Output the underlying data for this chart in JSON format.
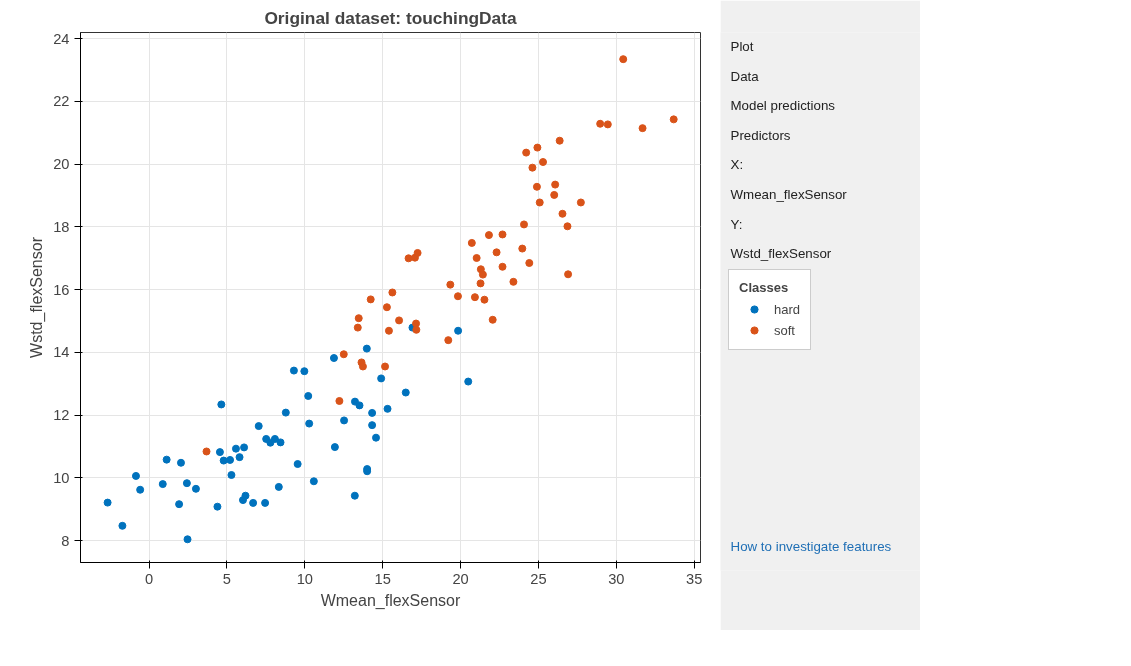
{
  "chart_data": {
    "type": "scatter",
    "title": "Original dataset: touchingData",
    "xlabel": "Wmean_flexSensor",
    "ylabel": "Wstd_flexSensor",
    "xlim": [
      -4.4,
      35.4
    ],
    "ylim": [
      7.3,
      24.2
    ],
    "xticks": [
      0,
      5,
      10,
      15,
      20,
      25,
      30,
      35
    ],
    "yticks": [
      8,
      10,
      12,
      14,
      16,
      18,
      20,
      22,
      24
    ],
    "grid": true,
    "marker": "circle",
    "legend": "right",
    "legend_title": "Classes",
    "annotations": [
      "Plot",
      "Data",
      "Model predictions",
      "Predictors",
      "X:",
      "Wmean_flexSensor",
      "Y:",
      "Wstd_flexSensor",
      "How to investigate features"
    ],
    "series": [
      {
        "name": "hard",
        "color": "#0072bd",
        "x": [
          -2.66,
          -1.71,
          -0.84,
          -0.57,
          0.88,
          1.13,
          1.93,
          2.05,
          2.43,
          2.47,
          3.01,
          4.39,
          4.55,
          4.64,
          4.79,
          5.2,
          5.29,
          5.58,
          5.81,
          6.1,
          6.03,
          6.19,
          6.68,
          7.04,
          7.45,
          7.52,
          7.79,
          8.08,
          8.44,
          8.33,
          8.78,
          9.3,
          9.54,
          9.97,
          10.22,
          10.28,
          10.58,
          11.87,
          11.93,
          12.52,
          13.21,
          13.22,
          13.51,
          13.98,
          14.32,
          14.32,
          14.0,
          14.0,
          14.57,
          14.9,
          15.31,
          16.91,
          19.84,
          20.49,
          16.48
        ],
        "values": [
          9.21,
          8.47,
          10.06,
          9.62,
          9.8,
          10.58,
          9.16,
          10.48,
          9.83,
          8.04,
          9.65,
          9.08,
          10.82,
          12.34,
          10.55,
          10.57,
          10.09,
          10.93,
          10.66,
          10.97,
          9.29,
          9.43,
          9.2,
          11.65,
          9.2,
          11.24,
          11.12,
          11.24,
          11.13,
          9.71,
          12.08,
          13.42,
          10.44,
          13.4,
          12.61,
          11.73,
          9.89,
          13.82,
          10.98,
          11.83,
          9.43,
          12.43,
          12.31,
          14.12,
          12.07,
          11.68,
          10.28,
          10.21,
          11.28,
          13.17,
          12.2,
          14.79,
          14.69,
          13.07,
          12.72
        ]
      },
      {
        "name": "soft",
        "color": "#d95319",
        "x": [
          3.69,
          12.22,
          12.5,
          13.4,
          13.46,
          13.64,
          13.73,
          14.23,
          15.15,
          15.27,
          15.4,
          15.62,
          16.05,
          16.66,
          17.07,
          17.24,
          17.14,
          17.16,
          19.21,
          19.34,
          19.83,
          20.72,
          20.92,
          21.03,
          21.3,
          21.43,
          21.28,
          21.53,
          21.82,
          22.06,
          22.31,
          22.69,
          22.69,
          23.39,
          23.96,
          24.41,
          24.07,
          26.86,
          26.9,
          30.44,
          28.96,
          29.45,
          31.68,
          33.68,
          26.36,
          24.93,
          24.21,
          25.29,
          24.61,
          24.9,
          26.07,
          26.01,
          25.08,
          27.72,
          26.54
        ],
        "values": [
          10.84,
          12.45,
          13.94,
          14.79,
          15.09,
          13.68,
          13.55,
          15.69,
          13.55,
          15.44,
          14.69,
          15.91,
          15.02,
          17.0,
          17.02,
          17.17,
          14.92,
          14.72,
          14.39,
          16.16,
          15.79,
          17.49,
          15.76,
          17.01,
          16.65,
          16.48,
          16.2,
          15.68,
          17.74,
          15.04,
          17.19,
          17.76,
          16.73,
          16.25,
          17.31,
          16.85,
          18.08,
          18.02,
          16.49,
          23.35,
          21.29,
          21.27,
          21.15,
          21.43,
          20.75,
          20.53,
          20.37,
          20.07,
          19.89,
          19.28,
          19.35,
          19.02,
          18.78,
          18.78,
          18.42
        ]
      }
    ]
  }
}
